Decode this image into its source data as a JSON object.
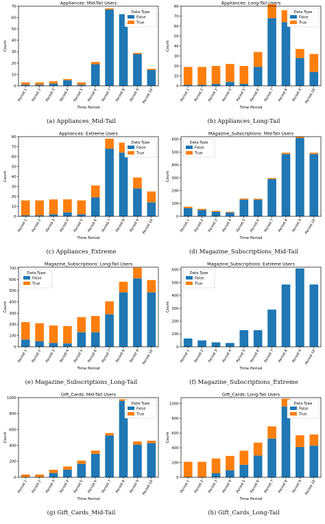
{
  "colors": {
    "false": "#1f77b4",
    "true": "#ff7f0e",
    "axis": "#000000"
  },
  "legend_title": "Data Type",
  "legend_labels": {
    "false": "False",
    "true": "True"
  },
  "xlabel": "Time Period",
  "ylabel": "Count",
  "chart_data": [
    {
      "type": "bar",
      "stacked": true,
      "legend": "top-right",
      "title": "Appliances: Mid-Tail Users",
      "caption": "(a) Appliances_Mid-Tail",
      "categories": [
        "Period 1",
        "Period 2",
        "Period 3",
        "Period 4",
        "Period 5",
        "Period 6",
        "Period 7",
        "Period 8",
        "Period 9",
        "Period 10"
      ],
      "ylim": [
        0,
        70
      ],
      "yticks": [
        0,
        10,
        20,
        30,
        40,
        50,
        60,
        70
      ],
      "series": [
        {
          "name": "False",
          "values": [
            1,
            1,
            2,
            5,
            1,
            19,
            67,
            63,
            28,
            14
          ]
        },
        {
          "name": "True",
          "values": [
            2,
            2,
            2,
            1,
            2,
            2,
            1,
            0,
            1,
            1
          ]
        }
      ]
    },
    {
      "type": "bar",
      "stacked": true,
      "legend": "top-right",
      "title": "Appliances: Long-Tail Users",
      "caption": "(b) Appliances_Long-Tail",
      "categories": [
        "Period 1",
        "Period 2",
        "Period 3",
        "Period 4",
        "Period 5",
        "Period 6",
        "Period 7",
        "Period 8",
        "Period 9",
        "Period 10"
      ],
      "ylim": [
        0,
        80
      ],
      "yticks": [
        0,
        10,
        20,
        30,
        40,
        50,
        60,
        70,
        80
      ],
      "series": [
        {
          "name": "False",
          "values": [
            1,
            1,
            2,
            4,
            2,
            19,
            68,
            64,
            28,
            14
          ]
        },
        {
          "name": "True",
          "values": [
            18,
            18,
            18,
            18,
            18,
            15,
            14,
            12,
            9,
            18
          ]
        }
      ]
    },
    {
      "type": "bar",
      "stacked": true,
      "legend": "top-right",
      "title": "Appliances: Extreme Users",
      "caption": "(c) Appliances_Extreme",
      "categories": [
        "Period 1",
        "Period 2",
        "Period 3",
        "Period 4",
        "Period 5",
        "Period 6",
        "Period 7",
        "Period 8",
        "Period 9",
        "Period 10"
      ],
      "ylim": [
        0,
        80
      ],
      "yticks": [
        0,
        10,
        20,
        30,
        40,
        50,
        60,
        70,
        80
      ],
      "series": [
        {
          "name": "False",
          "values": [
            1,
            1,
            2,
            4,
            2,
            19,
            68,
            64,
            28,
            14
          ]
        },
        {
          "name": "True",
          "values": [
            15,
            15,
            15,
            13,
            14,
            12,
            10,
            10,
            11,
            11
          ]
        }
      ]
    },
    {
      "type": "bar",
      "stacked": true,
      "legend": "top-left",
      "title": "Magazine_Subscriptions: Mid-Tail Users",
      "caption": "(d) Magazine_Subscriptions_Mid-Tail",
      "categories": [
        "Period 1",
        "Period 2",
        "Period 3",
        "Period 4",
        "Period 5",
        "Period 6",
        "Period 7",
        "Period 8",
        "Period 9",
        "Period 10"
      ],
      "ylim": [
        0,
        620
      ],
      "yticks": [
        0,
        100,
        200,
        300,
        400,
        500,
        600
      ],
      "series": [
        {
          "name": "False",
          "values": [
            65,
            50,
            35,
            30,
            130,
            130,
            290,
            485,
            610,
            485
          ]
        },
        {
          "name": "True",
          "values": [
            10,
            8,
            8,
            5,
            8,
            7,
            8,
            10,
            10,
            10
          ]
        }
      ]
    },
    {
      "type": "bar",
      "stacked": true,
      "legend": "top-left",
      "title": "Magazine_Subscriptions: Long-Tail Users",
      "caption": "(e) Magazine_Subscriptions_Long-Tail",
      "categories": [
        "Period 1",
        "Period 2",
        "Period 3",
        "Period 4",
        "Period 5",
        "Period 6",
        "Period 7",
        "Period 8",
        "Period 9",
        "Period 10"
      ],
      "ylim": [
        0,
        710
      ],
      "yticks": [
        0,
        100,
        200,
        300,
        400,
        500,
        600,
        700
      ],
      "series": [
        {
          "name": "False",
          "values": [
            65,
            50,
            35,
            30,
            130,
            130,
            290,
            485,
            610,
            485
          ]
        },
        {
          "name": "True",
          "values": [
            155,
            160,
            155,
            155,
            135,
            145,
            115,
            95,
            95,
            110
          ]
        }
      ]
    },
    {
      "type": "bar",
      "stacked": true,
      "legend": "top-left",
      "title": "Magazine_Subscriptions: Extreme Users",
      "caption": "(f) Magazine_Subscriptions_Extreme",
      "categories": [
        "Period 1",
        "Period 2",
        "Period 3",
        "Period 4",
        "Period 5",
        "Period 6",
        "Period 7",
        "Period 8",
        "Period 9",
        "Period 10"
      ],
      "ylim": [
        0,
        620
      ],
      "yticks": [
        0,
        100,
        200,
        300,
        400,
        500,
        600
      ],
      "series": [
        {
          "name": "False",
          "values": [
            65,
            50,
            35,
            30,
            130,
            130,
            290,
            485,
            610,
            485
          ]
        },
        {
          "name": "True",
          "values": [
            0,
            0,
            0,
            0,
            0,
            0,
            0,
            0,
            0,
            0
          ]
        }
      ]
    },
    {
      "type": "bar",
      "stacked": true,
      "legend": "top-right",
      "title": "Gift_Cards: Mid-Tail Users",
      "caption": "(g) Gift_Cards_Mid-Tail",
      "categories": [
        "Period 1",
        "Period 2",
        "Period 3",
        "Period 4",
        "Period 5",
        "Period 6",
        "Period 7",
        "Period 8",
        "Period 9",
        "Period 10"
      ],
      "ylim": [
        0,
        1000
      ],
      "yticks": [
        0,
        200,
        400,
        600,
        800,
        1000
      ],
      "series": [
        {
          "name": "False",
          "values": [
            5,
            5,
            55,
            95,
            170,
            295,
            525,
            960,
            410,
            430
          ]
        },
        {
          "name": "True",
          "values": [
            30,
            30,
            40,
            40,
            40,
            40,
            30,
            20,
            40,
            30
          ]
        }
      ]
    },
    {
      "type": "bar",
      "stacked": true,
      "legend": "top-right",
      "title": "Gift_Cards: Long-Tail Users",
      "caption": "(h) Gift_Cards_Long-Tail",
      "categories": [
        "Period 1",
        "Period 2",
        "Period 3",
        "Period 4",
        "Period 5",
        "Period 6",
        "Period 7",
        "Period 8",
        "Period 9",
        "Period 10"
      ],
      "ylim": [
        0,
        1080
      ],
      "yticks": [
        0,
        200,
        400,
        600,
        800,
        1000
      ],
      "series": [
        {
          "name": "False",
          "values": [
            5,
            5,
            55,
            95,
            170,
            295,
            525,
            960,
            410,
            430
          ]
        },
        {
          "name": "True",
          "values": [
            205,
            205,
            200,
            195,
            190,
            175,
            165,
            105,
            160,
            150
          ]
        }
      ]
    }
  ]
}
